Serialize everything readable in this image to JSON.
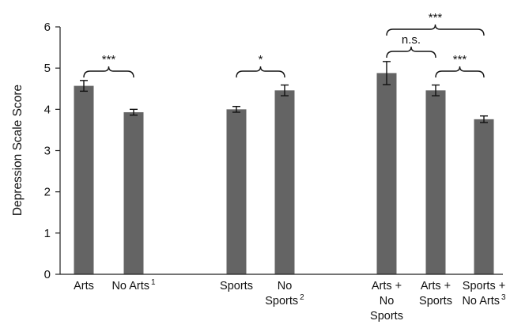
{
  "chart_data": {
    "type": "bar",
    "ylabel": "Depression Scale Score",
    "ylim": [
      0,
      6
    ],
    "yticks": [
      "0",
      "1",
      "2",
      "3",
      "4",
      "5",
      "6"
    ],
    "grid": false,
    "legend": "none",
    "bar_color": "#646464",
    "categories": [
      {
        "lines": [
          "Arts"
        ],
        "sup": ""
      },
      {
        "lines": [
          "No Arts"
        ],
        "sup": "1"
      },
      {
        "lines": [
          "Sports"
        ],
        "sup": ""
      },
      {
        "lines": [
          "No",
          "Sports"
        ],
        "sup": "2"
      },
      {
        "lines": [
          "Arts +",
          "No",
          "Sports"
        ],
        "sup": ""
      },
      {
        "lines": [
          "Arts +",
          "Sports"
        ],
        "sup": ""
      },
      {
        "lines": [
          "Sports +",
          "No Arts"
        ],
        "sup": "3"
      }
    ],
    "values": [
      4.57,
      3.93,
      4.0,
      4.46,
      4.88,
      4.46,
      3.76
    ],
    "errors": [
      0.13,
      0.07,
      0.07,
      0.13,
      0.28,
      0.13,
      0.08
    ],
    "significance": [
      {
        "from": 0,
        "to": 1,
        "label": "***"
      },
      {
        "from": 2,
        "to": 3,
        "label": "*"
      },
      {
        "from": 4,
        "to": 5,
        "label": "n.s."
      },
      {
        "from": 5,
        "to": 6,
        "label": "***"
      },
      {
        "from": 4,
        "to": 6,
        "label": "***"
      }
    ]
  }
}
